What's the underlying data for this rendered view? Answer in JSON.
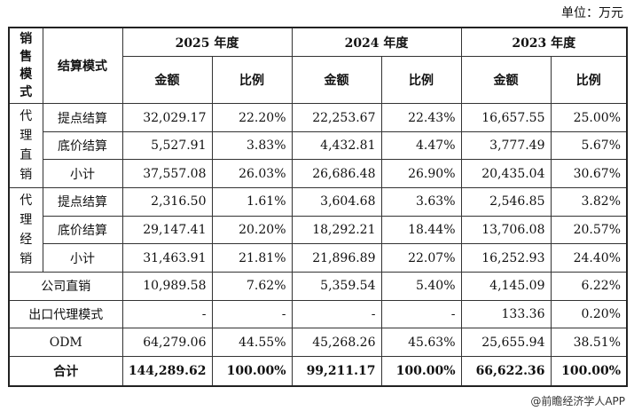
{
  "unit_label": "单位：万元",
  "credit": "@前瞻经济学人APP",
  "header": {
    "sales_mode": "销售模式",
    "settlement_mode": "结算模式",
    "years": [
      "2025 年度",
      "2024 年度",
      "2023 年度"
    ],
    "amount": "金额",
    "ratio": "比例"
  },
  "groups": {
    "agent_direct": "代理直销",
    "agent_distribution": "代理经销"
  },
  "rows": [
    {
      "label": "提点结算",
      "v": [
        "32,029.17",
        "22.20%",
        "22,253.67",
        "22.43%",
        "16,657.55",
        "25.00%"
      ]
    },
    {
      "label": "底价结算",
      "v": [
        "5,527.91",
        "3.83%",
        "4,432.81",
        "4.47%",
        "3,777.49",
        "5.67%"
      ]
    },
    {
      "label": "小计",
      "v": [
        "37,557.08",
        "26.03%",
        "26,686.48",
        "26.90%",
        "20,435.04",
        "30.67%"
      ]
    },
    {
      "label": "提点结算",
      "v": [
        "2,316.50",
        "1.61%",
        "3,604.68",
        "3.63%",
        "2,546.85",
        "3.82%"
      ]
    },
    {
      "label": "底价结算",
      "v": [
        "29,147.41",
        "20.20%",
        "18,292.21",
        "18.44%",
        "13,706.08",
        "20.57%"
      ]
    },
    {
      "label": "小计",
      "v": [
        "31,463.91",
        "21.81%",
        "21,896.89",
        "22.07%",
        "16,252.93",
        "24.40%"
      ]
    },
    {
      "label": "公司直销",
      "v": [
        "10,989.58",
        "7.62%",
        "5,359.54",
        "5.40%",
        "4,145.09",
        "6.22%"
      ]
    },
    {
      "label": "出口代理模式",
      "v": [
        "-",
        "-",
        "-",
        "-",
        "133.36",
        "0.20%"
      ]
    },
    {
      "label": "ODM",
      "v": [
        "64,279.06",
        "44.55%",
        "45,268.26",
        "45.63%",
        "25,655.94",
        "38.51%"
      ]
    },
    {
      "label": "合计",
      "v": [
        "144,289.62",
        "100.00%",
        "99,211.17",
        "100.00%",
        "66,622.36",
        "100.00%"
      ]
    }
  ]
}
